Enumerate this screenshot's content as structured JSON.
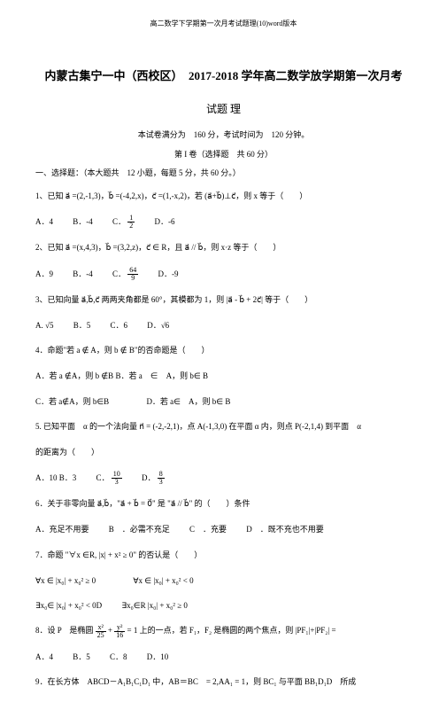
{
  "header": "高二数学下学期第一次月考试题理(10)word版本",
  "title": "内蒙古集宁一中（西校区）　2017-2018 学年高二数学放学期第一次月考",
  "subtitle": "试题 理",
  "info1": "本试卷满分为　160 分，考试时间为　120 分钟。",
  "info2": "第 I 卷（选择题　共 60 分）",
  "section1": "一、选择题：（本大题共　12 小题，每题 5 分，共 60 分。）",
  "q1": "1、已知 a⃗ =(2,-1,3)，b⃗ =(-4,2,x)，c⃗ =(1,-x,2)，若 (a⃗+b⃗)⊥c⃗，则 x 等于（　　）",
  "q1a": "A．4",
  "q1b": "B．-4",
  "q1c_pre": "C．",
  "q1c_num": "1",
  "q1c_den": "2",
  "q1d": "D．-6",
  "q2": "2、已知 a⃗ =(x,4,3)，b⃗ =(3,2,z)，c⃗ ∈ R，且 a⃗ // b⃗，则 x·z 等于（　　）",
  "q2a": "A．9",
  "q2b": "B．-4",
  "q2c_pre": "C．",
  "q2c_num": "64",
  "q2c_den": "9",
  "q2d": "D．-9",
  "q3": "3、已知向量 a⃗,b⃗,c⃗ 两两夹角都是 60°，其模都为 1，则 |a⃗ - b⃗ + 2c⃗| 等于（　　）",
  "q3a": "A. √5",
  "q3b": "B．5",
  "q3c": "C．6",
  "q3d": "D．√6",
  "q4": "4．命题\"若 a ∉ A，则 b ∉ B\"的否命题是（　　）",
  "q4a": "A．若 a ∉A，则 b ∉B",
  "q4b": "B．若 a　∈　A，则 b∈ B",
  "q4c": "C．若 a∉A，则 b∈B",
  "q4d": "D．若 a∈　A，则 b∈ B",
  "q5": "5. 已知平面　α 的一个法向量 n⃗ = (-2,-2,1)，点 A(-1,3,0) 在平面 α 内，则点 P(-2,1,4) 到平面　α",
  "q5b": "的距离为（　　）",
  "q5aA": "A．10",
  "q5aB": "B．3",
  "q5aC_pre": "C．",
  "q5aC_num": "10",
  "q5aC_den": "3",
  "q5aD_pre": "D．",
  "q5aD_num": "8",
  "q5aD_den": "3",
  "q6": "6．关于非零向量 a⃗,b⃗，\"a⃗ + b⃗ = 0⃗\" 是 \"a⃗ // b⃗\" 的（　　）条件",
  "q6a": "A．充足不用要",
  "q6b": "B　．必需不充足",
  "q6c": "C　．充要",
  "q6d": "D　．既不充也不用要",
  "q7": "7．命题 \"∀x ∈R, |x| + x² ≥ 0\" 的否认是（　　）",
  "q7a_a": "∀x ∈",
  "q7a_b": "|x₀| + x₀² ≥ 0",
  "q7b_a": "∀x ∈",
  "q7b_b": "|x₀| + x₀² < 0",
  "q7c_a": "∃x₀∈",
  "q7c_b": "|x₀| + x₀² < 0D",
  "q7d_a": "∃x₀∈R",
  "q7d_b": "|x₀| + x₀² ≥ 0",
  "q8_pre": "8．设 P　是椭圆",
  "q8_num": "x²",
  "q8_num2": "y²",
  "q8_d1": "25",
  "q8_d2": "16",
  "q8_mid": "= 1 上的一点，若",
  "q8_rest": "F₁，F₂ 是椭圆的两个焦点，则 |PF₁|+|PF₂| =",
  "q8a": "A．4",
  "q8b": "B．5",
  "q8c": "C．8",
  "q8d": "D．10",
  "q9": "9．在长方体　ABCD－A₁B₁C₁D₁ 中，AB＝BC　= 2,AA₁ = 1，则 BC₁ 与平面 BB₁D₁D　所成"
}
